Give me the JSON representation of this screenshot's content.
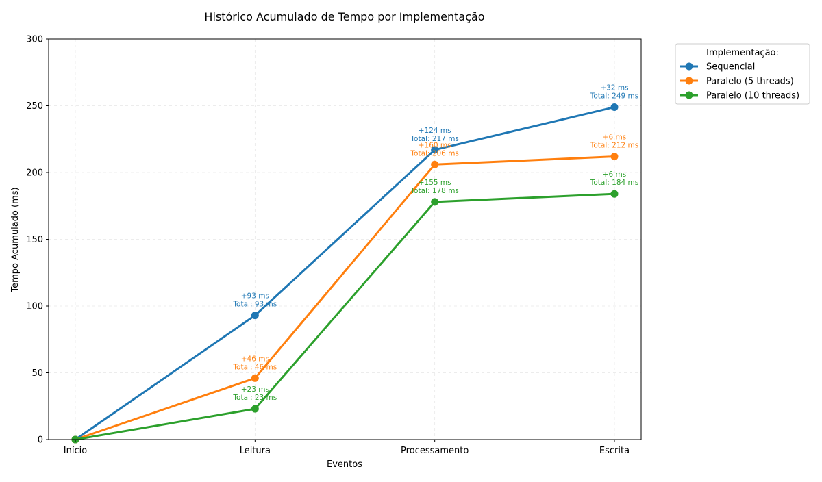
{
  "chart_data": {
    "type": "line",
    "title": "Histórico Acumulado de Tempo por Implementação",
    "xlabel": "Eventos",
    "ylabel": "Tempo Acumulado (ms)",
    "categories": [
      "Início",
      "Leitura",
      "Processamento",
      "Escrita"
    ],
    "ylim": [
      0,
      300
    ],
    "yticks": [
      0,
      50,
      100,
      150,
      200,
      250,
      300
    ],
    "grid": true,
    "legend": {
      "title": "Implementação:",
      "placement": "outside-top-right"
    },
    "series": [
      {
        "name": "Sequencial",
        "color": "#1f77b4",
        "values": [
          0,
          93,
          217,
          249
        ],
        "increment_labels": [
          "",
          "+93 ms",
          "+124 ms",
          "+32 ms"
        ],
        "total_labels": [
          "",
          "Total: 93 ms",
          "Total: 217 ms",
          "Total: 249 ms"
        ]
      },
      {
        "name": "Paralelo (5 threads)",
        "color": "#ff7f0e",
        "values": [
          0,
          46,
          206,
          212
        ],
        "increment_labels": [
          "",
          "+46 ms",
          "+160 ms",
          "+6 ms"
        ],
        "total_labels": [
          "",
          "Total: 46 ms",
          "Total: 206 ms",
          "Total: 212 ms"
        ]
      },
      {
        "name": "Paralelo (10 threads)",
        "color": "#2ca02c",
        "values": [
          0,
          23,
          178,
          184
        ],
        "increment_labels": [
          "",
          "+23 ms",
          "+155 ms",
          "+6 ms"
        ],
        "total_labels": [
          "",
          "Total: 23 ms",
          "Total: 178 ms",
          "Total: 184 ms"
        ]
      }
    ]
  }
}
